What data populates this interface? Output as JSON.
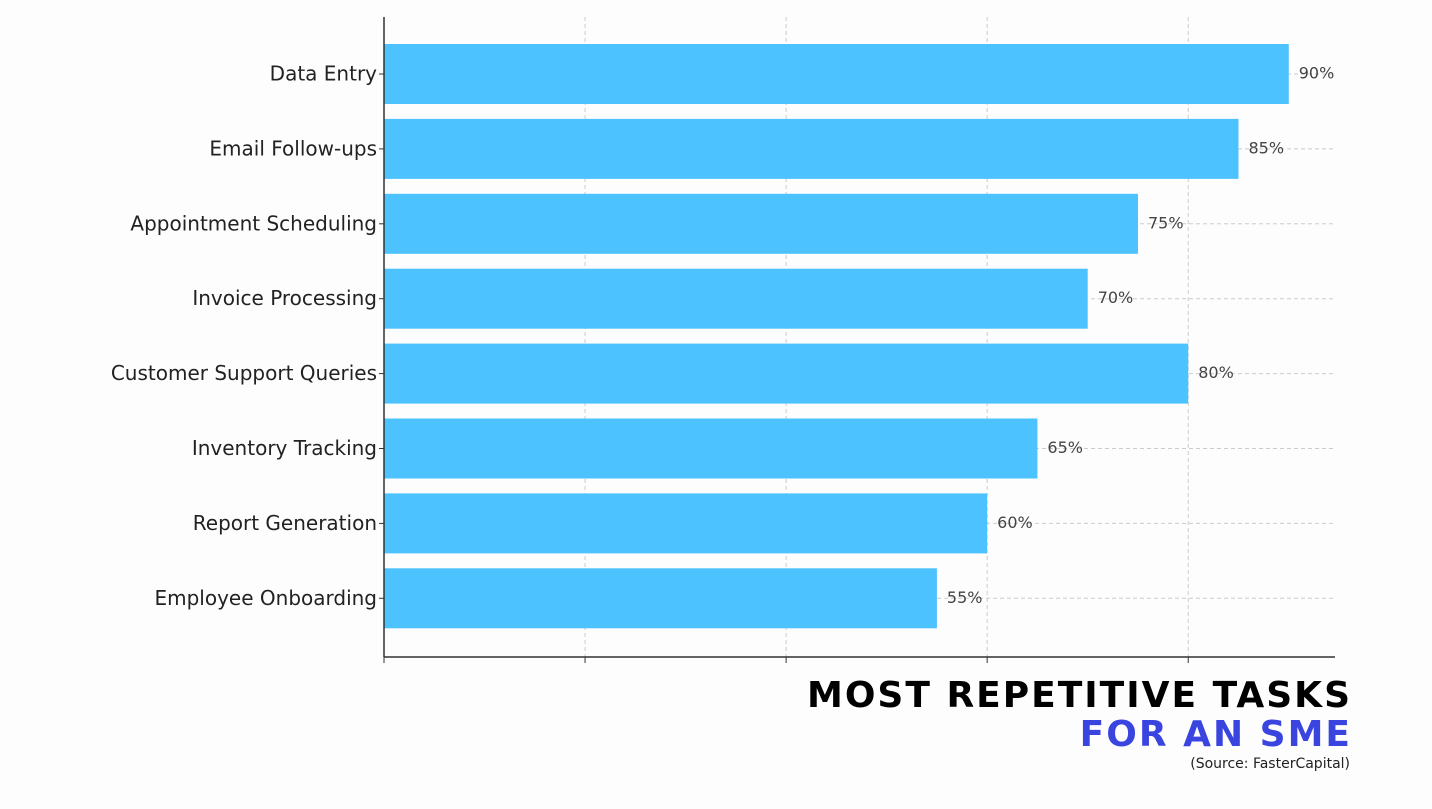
{
  "chart_data": {
    "type": "hbar",
    "title": "MOST REPETITIVE TASKS",
    "subtitle": "FOR AN SME",
    "source": "(Source: FasterCapital)",
    "categories": [
      "Data Entry",
      "Email Follow-ups",
      "Appointment Scheduling",
      "Invoice Processing",
      "Customer Support Queries",
      "Inventory Tracking",
      "Report Generation",
      "Employee Onboarding"
    ],
    "values": [
      90,
      85,
      75,
      70,
      80,
      65,
      60,
      55
    ],
    "value_labels": [
      "90%",
      "85%",
      "75%",
      "70%",
      "80%",
      "65%",
      "60%",
      "55%"
    ],
    "color": "#4cc2ff",
    "xlim": [
      0,
      94.6
    ],
    "xticks": [
      0,
      20,
      40,
      60,
      80
    ],
    "grid": true
  }
}
